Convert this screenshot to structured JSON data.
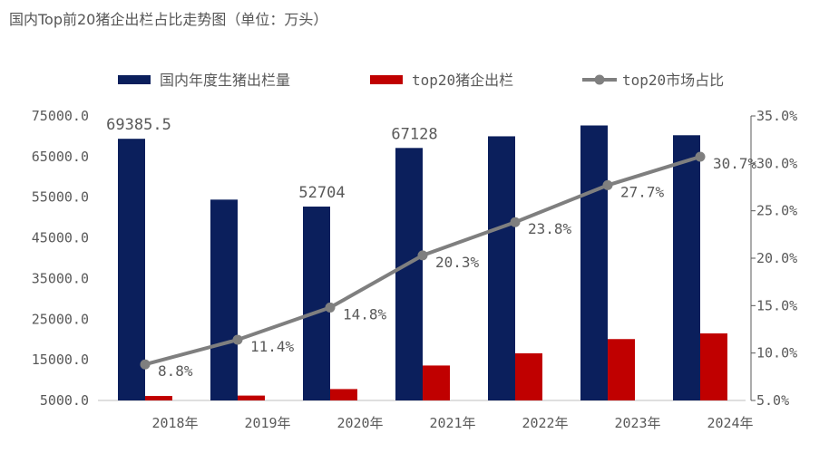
{
  "chart_data": {
    "title": "国内Top前20猪企出栏占比走势图（单位：万头）",
    "type": "bar",
    "categories": [
      "2018年",
      "2019年",
      "2020年",
      "2021年",
      "2022年",
      "2023年",
      "2024年"
    ],
    "series": [
      {
        "name": "国内年度生猪出栏量",
        "type": "bar",
        "axis": "left",
        "color": "#0b1f5c",
        "values": [
          69385.5,
          54419,
          52704,
          67128,
          69995,
          72662,
          70256
        ],
        "data_labels": [
          "69385.5",
          "",
          "52704",
          "67128",
          "",
          "",
          ""
        ]
      },
      {
        "name": "top20猪企出栏",
        "type": "bar",
        "axis": "left",
        "color": "#c00000",
        "values": [
          6100,
          6200,
          7800,
          13600,
          16600,
          20100,
          21500
        ]
      },
      {
        "name": "top20市场占比",
        "type": "line",
        "axis": "right",
        "color": "#7f7f7f",
        "values": [
          8.8,
          11.4,
          14.8,
          20.3,
          23.8,
          27.7,
          30.7
        ],
        "data_labels": [
          "8.8%",
          "11.4%",
          "14.8%",
          "20.3%",
          "23.8%",
          "27.7%",
          "30.7%"
        ]
      }
    ],
    "y_left": {
      "min": 5000,
      "max": 75000,
      "ticks": [
        5000,
        15000,
        25000,
        35000,
        45000,
        55000,
        65000,
        75000
      ],
      "tick_labels": [
        "5000.0",
        "15000.0",
        "25000.0",
        "35000.0",
        "45000.0",
        "55000.0",
        "65000.0",
        "75000.0"
      ]
    },
    "y_right": {
      "min": 5,
      "max": 35,
      "ticks": [
        5,
        10,
        15,
        20,
        25,
        30,
        35
      ],
      "tick_labels": [
        "5.0%",
        "10.0%",
        "15.0%",
        "20.0%",
        "25.0%",
        "30.0%",
        "35.0%"
      ]
    },
    "legend_position": "top",
    "grid": false
  }
}
